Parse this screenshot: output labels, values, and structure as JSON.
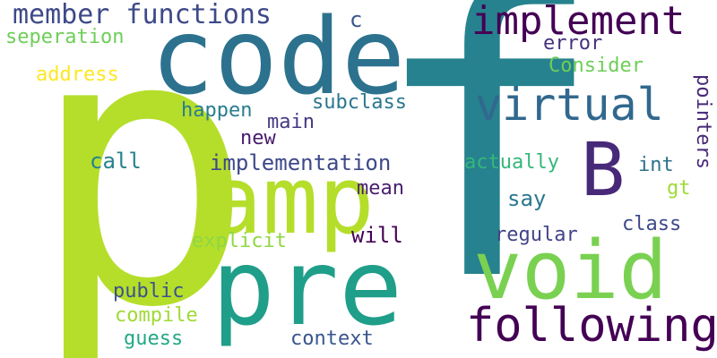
{
  "words": {
    "p": "p",
    "f": "f",
    "code": "code",
    "amp": "amp",
    "pre": "pre",
    "void": "void",
    "following": "following",
    "implement": "implement",
    "virtual": "virtual",
    "B": "B",
    "member_functions": "member functions",
    "c": "c",
    "seperation": "seperation",
    "error": "error",
    "address": "address",
    "consider": "Consider",
    "pointers": "pointers",
    "happen": "happen",
    "subclass": "subclass",
    "main": "main",
    "new": "new",
    "call": "call",
    "implementation": "implementation",
    "actually": "actually",
    "int": "int",
    "gt": "gt",
    "mean": "mean",
    "say": "say",
    "class": "class",
    "explicit": "explicit",
    "will": "will",
    "regular": "regular",
    "public": "public",
    "compile": "compile",
    "guess": "guess",
    "context": "context"
  },
  "colors": {
    "lime": "#b5de2b",
    "teal": "#21918c",
    "blue": "#31688e",
    "slate": "#3e4989",
    "indigo": "#482878",
    "dark": "#440154",
    "green": "#35b779",
    "light_green": "#6ece58",
    "jade": "#1f9e89",
    "steel": "#26828e",
    "yellow": "#fde725"
  }
}
